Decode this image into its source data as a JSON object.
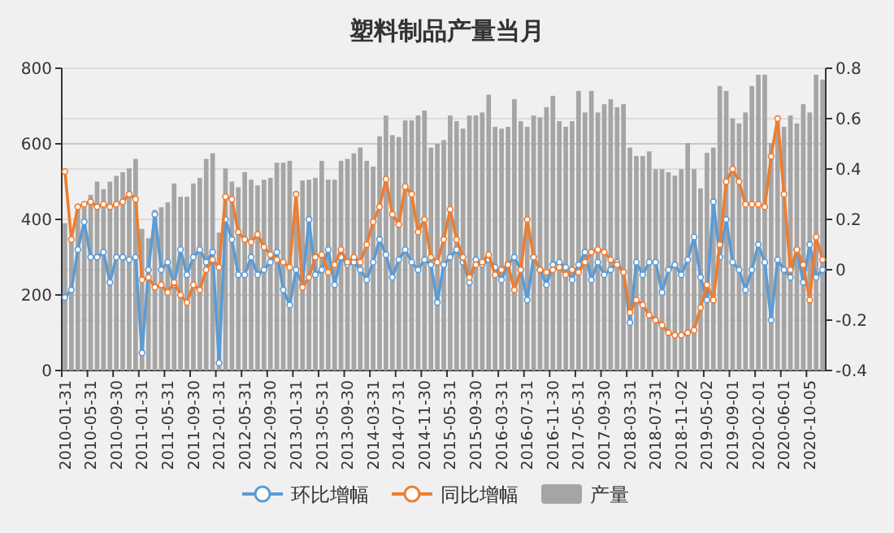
{
  "chart_data": {
    "type": "bar",
    "title": "塑料制品产量当月",
    "categories": [
      "2010-01-31",
      null,
      null,
      null,
      "2010-05-31",
      null,
      null,
      null,
      "2010-09-30",
      null,
      null,
      null,
      "2011-01-31",
      null,
      null,
      null,
      "2011-05-31",
      null,
      null,
      null,
      "2011-09-30",
      null,
      null,
      null,
      "2012-01-31",
      null,
      null,
      null,
      "2012-05-31",
      null,
      null,
      null,
      "2012-09-30",
      null,
      null,
      null,
      "2013-01-31",
      null,
      null,
      null,
      "2013-05-31",
      null,
      null,
      null,
      "2013-09-30",
      null,
      null,
      null,
      "2014-03-31",
      null,
      null,
      null,
      "2014-07-31",
      null,
      null,
      null,
      "2014-11-30",
      null,
      null,
      null,
      "2015-05-31",
      null,
      null,
      null,
      "2015-09-30",
      null,
      null,
      null,
      "2016-03-31",
      null,
      null,
      null,
      "2016-07-31",
      null,
      null,
      null,
      "2016-11-30",
      null,
      null,
      null,
      "2017-05-31",
      null,
      null,
      null,
      "2017-09-30",
      null,
      null,
      null,
      "2018-03-31",
      null,
      null,
      null,
      "2018-07-31",
      null,
      null,
      null,
      "2018-11-02",
      null,
      null,
      null,
      "2019-05-02",
      null,
      null,
      null,
      "2019-09-01",
      null,
      null,
      null,
      "2020-02-01",
      null,
      null,
      null,
      "2020-06-01",
      null,
      null,
      null,
      "2020-10-05",
      null,
      null
    ],
    "series": [
      {
        "name": "环比增幅",
        "type": "line",
        "axis": "y2",
        "color": "#5b9bd5",
        "values": [
          -0.11,
          -0.08,
          0.08,
          0.19,
          0.05,
          0.05,
          0.07,
          -0.05,
          0.05,
          0.05,
          0.04,
          0.05,
          -0.33,
          0.0,
          0.22,
          0.0,
          0.03,
          -0.06,
          0.08,
          -0.02,
          0.05,
          0.08,
          0.03,
          0.07,
          -0.37,
          0.2,
          0.12,
          -0.02,
          -0.02,
          0.05,
          -0.02,
          0.0,
          0.03,
          0.07,
          -0.08,
          -0.14,
          0.0,
          -0.06,
          0.2,
          -0.02,
          0.0,
          0.08,
          -0.06,
          0.05,
          0.02,
          0.03,
          0.0,
          -0.04,
          0.03,
          0.12,
          0.06,
          -0.03,
          0.04,
          0.08,
          0.03,
          0.0,
          0.04,
          0.02,
          -0.13,
          0.02,
          0.05,
          0.08,
          0.03,
          -0.05,
          0.04,
          0.02,
          0.04,
          0.01,
          -0.04,
          0.02,
          0.05,
          0.0,
          -0.12,
          0.05,
          0.0,
          -0.06,
          0.02,
          0.03,
          0.01,
          -0.04,
          0.02,
          0.07,
          -0.04,
          0.03,
          -0.02,
          0.0,
          0.03,
          -0.01,
          -0.21,
          0.03,
          -0.02,
          0.03,
          0.03,
          -0.09,
          0.0,
          0.02,
          -0.02,
          0.04,
          0.13,
          -0.03,
          -0.12,
          0.27,
          0.05,
          0.2,
          0.03,
          0.0,
          -0.08,
          0.0,
          0.1,
          0.03,
          -0.2,
          0.04,
          0.0,
          -0.03,
          0.08,
          -0.05,
          0.1,
          -0.03,
          0.0
        ]
      },
      {
        "name": "同比增幅",
        "type": "line",
        "axis": "y2",
        "color": "#ed7d31",
        "values": [
          0.39,
          0.12,
          0.25,
          0.26,
          0.27,
          0.25,
          0.26,
          0.25,
          0.26,
          0.27,
          0.3,
          0.28,
          -0.04,
          -0.03,
          -0.07,
          -0.06,
          -0.09,
          -0.05,
          -0.1,
          -0.13,
          -0.06,
          -0.08,
          0.0,
          0.04,
          0.01,
          0.29,
          0.28,
          0.15,
          0.12,
          0.11,
          0.14,
          0.09,
          0.06,
          0.04,
          0.03,
          0.01,
          0.3,
          -0.07,
          -0.03,
          0.05,
          0.06,
          -0.01,
          0.02,
          0.08,
          0.03,
          0.05,
          0.03,
          0.1,
          0.19,
          0.25,
          0.36,
          0.22,
          0.18,
          0.33,
          0.3,
          0.15,
          0.2,
          0.05,
          0.03,
          0.12,
          0.24,
          0.12,
          0.05,
          -0.03,
          0.02,
          0.03,
          0.06,
          -0.02,
          0.0,
          0.02,
          -0.08,
          0.0,
          0.2,
          0.05,
          0.0,
          -0.01,
          0.0,
          0.01,
          -0.02,
          0.0,
          -0.01,
          0.03,
          0.07,
          0.08,
          0.07,
          0.04,
          0.02,
          -0.01,
          -0.17,
          -0.12,
          -0.14,
          -0.18,
          -0.2,
          -0.22,
          -0.25,
          -0.26,
          -0.26,
          -0.25,
          -0.24,
          -0.15,
          -0.06,
          -0.12,
          0.1,
          0.35,
          0.4,
          0.35,
          0.26,
          0.26,
          0.26,
          0.25,
          0.45,
          0.6,
          0.3,
          0.0,
          0.08,
          0.02,
          -0.12,
          0.13,
          0.04
        ]
      },
      {
        "name": "产量",
        "type": "bar",
        "color": "#a5a5a5",
        "values": [
          390,
          350,
          430,
          445,
          465,
          500,
          480,
          500,
          515,
          525,
          535,
          560,
          375,
          350,
          425,
          432,
          445,
          495,
          460,
          460,
          495,
          510,
          560,
          575,
          365,
          535,
          500,
          485,
          525,
          505,
          490,
          505,
          510,
          550,
          550,
          555,
          410,
          503,
          505,
          510,
          555,
          505,
          505,
          555,
          560,
          575,
          590,
          555,
          540,
          620,
          675,
          623,
          618,
          662,
          662,
          675,
          688,
          590,
          600,
          610,
          675,
          660,
          640,
          675,
          675,
          683,
          730,
          645,
          640,
          645,
          718,
          660,
          645,
          675,
          670,
          697,
          727,
          660,
          645,
          660,
          740,
          683,
          740,
          683,
          705,
          718,
          697,
          705,
          590,
          568,
          568,
          580,
          533,
          533,
          525,
          516,
          533,
          602,
          533,
          482,
          576,
          590,
          753,
          740,
          667,
          654,
          683,
          753,
          783,
          783,
          602,
          662,
          645,
          675,
          654,
          705,
          683,
          783,
          770
        ]
      }
    ],
    "ylim": [
      0,
      800
    ],
    "yticks": [
      0,
      200,
      400,
      600,
      800
    ],
    "y2lim": [
      -0.4,
      0.8
    ],
    "y2ticks": [
      -0.4,
      -0.2,
      0,
      0.2,
      0.4,
      0.6,
      0.8
    ],
    "grid": "y",
    "legend": "bottom",
    "marker": "circle"
  }
}
